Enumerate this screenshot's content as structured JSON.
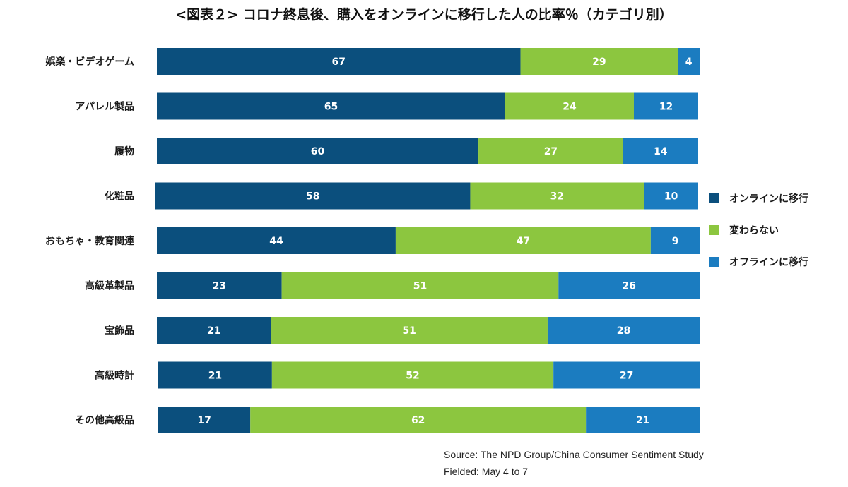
{
  "chart_data": {
    "type": "bar",
    "orientation": "horizontal",
    "stacked": true,
    "title": "<図表２> コロナ終息後、購入をオンラインに移行した人の比率％（カテゴリ別）",
    "categories": [
      "娯楽・ビデオゲーム",
      "アパレル製品",
      "履物",
      "化粧品",
      "おもちゃ・教育関連",
      "高級革製品",
      "宝飾品",
      "高級時計",
      "その他高級品"
    ],
    "series": [
      {
        "name": "オンラインに移行",
        "color": "#0b4f7d",
        "values": [
          67,
          65,
          60,
          58,
          44,
          23,
          21,
          21,
          17
        ]
      },
      {
        "name": "変わらない",
        "color": "#8cc63f",
        "values": [
          29,
          24,
          27,
          32,
          47,
          51,
          51,
          52,
          62
        ]
      },
      {
        "name": "オフラインに移行",
        "color": "#1b7cc0",
        "values": [
          4,
          12,
          14,
          10,
          9,
          26,
          28,
          27,
          21
        ]
      }
    ],
    "legend_position": "right",
    "source_lines": [
      "Source: The NPD Group/China Consumer Sentiment Study",
      "Fielded: May 4 to 7"
    ]
  }
}
